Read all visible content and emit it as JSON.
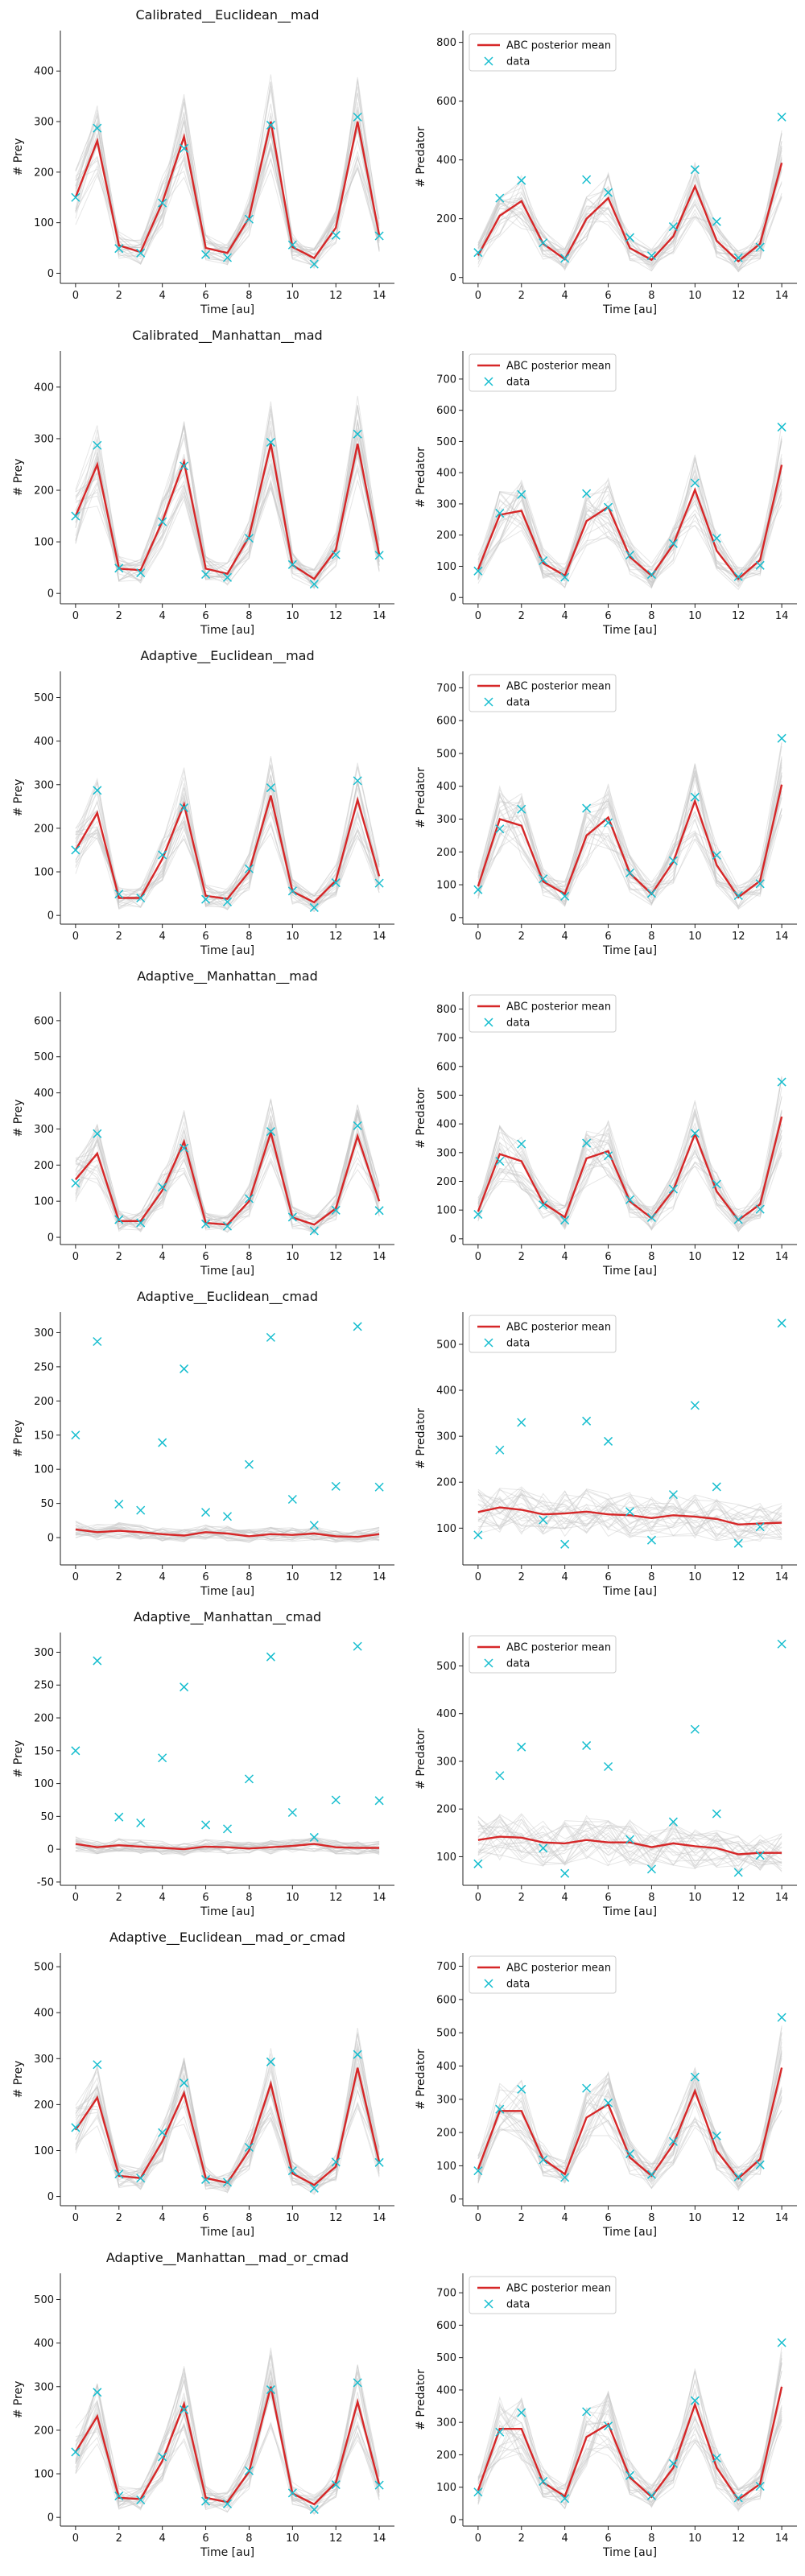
{
  "figure": {
    "background": "#ffffff"
  },
  "style": {
    "mean_color": "#d62728",
    "data_color": "#17becf",
    "sample_color": "#c8c8c8",
    "x_label": "Time [au]",
    "legend_labels": [
      "ABC posterior mean",
      "data"
    ]
  },
  "observed": {
    "x": [
      0,
      1,
      2,
      3,
      4,
      5,
      6,
      7,
      8,
      9,
      10,
      11,
      12,
      13,
      14
    ],
    "prey": [
      150,
      287,
      49,
      40,
      139,
      247,
      37,
      31,
      107,
      293,
      56,
      18,
      75,
      309,
      74
    ],
    "predator": [
      85,
      270,
      330,
      118,
      65,
      333,
      289,
      136,
      74,
      173,
      367,
      190,
      67,
      103,
      546
    ]
  },
  "chart_data": [
    {
      "type": "line",
      "title": "Calibrated__Euclidean__mad",
      "xlabel": "Time [au]",
      "ylabel": "# Prey",
      "xlim": [
        -0.7,
        14.7
      ],
      "ylim": [
        -20,
        480
      ],
      "xticks": [
        0,
        2,
        4,
        6,
        8,
        10,
        12,
        14
      ],
      "yticks": [
        0,
        100,
        200,
        300,
        400
      ],
      "series": [
        {
          "name": "ABC posterior mean",
          "values": [
            150,
            262,
            55,
            42,
            140,
            270,
            50,
            40,
            110,
            300,
            52,
            30,
            90,
            300,
            75
          ]
        },
        {
          "name": "data",
          "values": [
            150,
            287,
            49,
            40,
            139,
            247,
            37,
            31,
            107,
            293,
            56,
            18,
            75,
            309,
            74
          ]
        }
      ],
      "legend": ""
    },
    {
      "type": "line",
      "title": "",
      "xlabel": "Time [au]",
      "ylabel": "# Predator",
      "xlim": [
        -0.7,
        14.7
      ],
      "ylim": [
        -20,
        840
      ],
      "xticks": [
        0,
        2,
        4,
        6,
        8,
        10,
        12,
        14
      ],
      "yticks": [
        0,
        200,
        400,
        600,
        800
      ],
      "series": [
        {
          "name": "ABC posterior mean",
          "values": [
            75,
            210,
            260,
            115,
            62,
            200,
            270,
            100,
            60,
            140,
            310,
            125,
            55,
            115,
            390
          ]
        },
        {
          "name": "data",
          "values": [
            85,
            270,
            330,
            118,
            65,
            333,
            289,
            136,
            74,
            173,
            367,
            190,
            67,
            103,
            546
          ]
        }
      ],
      "legend": "upper left"
    },
    {
      "type": "line",
      "title": "Calibrated__Manhattan__mad",
      "xlabel": "Time [au]",
      "ylabel": "# Prey",
      "xlim": [
        -0.7,
        14.7
      ],
      "ylim": [
        -20,
        470
      ],
      "xticks": [
        0,
        2,
        4,
        6,
        8,
        10,
        12,
        14
      ],
      "yticks": [
        0,
        100,
        200,
        300,
        400
      ],
      "series": [
        {
          "name": "ABC posterior mean",
          "values": [
            150,
            250,
            48,
            45,
            140,
            255,
            48,
            38,
            110,
            290,
            55,
            28,
            85,
            290,
            75
          ]
        },
        {
          "name": "data",
          "values": [
            150,
            287,
            49,
            40,
            139,
            247,
            37,
            31,
            107,
            293,
            56,
            18,
            75,
            309,
            74
          ]
        }
      ],
      "legend": ""
    },
    {
      "type": "line",
      "title": "",
      "xlabel": "Time [au]",
      "ylabel": "# Predator",
      "xlim": [
        -0.7,
        14.7
      ],
      "ylim": [
        -20,
        790
      ],
      "xticks": [
        0,
        2,
        4,
        6,
        8,
        10,
        12,
        14
      ],
      "yticks": [
        0,
        100,
        200,
        300,
        400,
        500,
        600,
        700
      ],
      "series": [
        {
          "name": "ABC posterior mean",
          "values": [
            90,
            265,
            278,
            110,
            70,
            245,
            290,
            130,
            70,
            170,
            345,
            150,
            60,
            120,
            425
          ]
        },
        {
          "name": "data",
          "values": [
            85,
            270,
            330,
            118,
            65,
            333,
            289,
            136,
            74,
            173,
            367,
            190,
            67,
            103,
            546
          ]
        }
      ],
      "legend": "upper left"
    },
    {
      "type": "line",
      "title": "Adaptive__Euclidean__mad",
      "xlabel": "Time [au]",
      "ylabel": "# Prey",
      "xlim": [
        -0.7,
        14.7
      ],
      "ylim": [
        -20,
        560
      ],
      "xticks": [
        0,
        2,
        4,
        6,
        8,
        10,
        12,
        14
      ],
      "yticks": [
        0,
        100,
        200,
        300,
        400,
        500
      ],
      "series": [
        {
          "name": "ABC posterior mean",
          "values": [
            150,
            235,
            40,
            40,
            130,
            255,
            45,
            38,
            100,
            275,
            55,
            30,
            80,
            265,
            90
          ]
        },
        {
          "name": "data",
          "values": [
            150,
            287,
            49,
            40,
            139,
            247,
            37,
            31,
            107,
            293,
            56,
            18,
            75,
            309,
            74
          ]
        }
      ],
      "legend": ""
    },
    {
      "type": "line",
      "title": "",
      "xlabel": "Time [au]",
      "ylabel": "# Predator",
      "xlim": [
        -0.7,
        14.7
      ],
      "ylim": [
        -20,
        750
      ],
      "xticks": [
        0,
        2,
        4,
        6,
        8,
        10,
        12,
        14
      ],
      "yticks": [
        0,
        100,
        200,
        300,
        400,
        500,
        600,
        700
      ],
      "series": [
        {
          "name": "ABC posterior mean",
          "values": [
            95,
            300,
            280,
            110,
            72,
            250,
            305,
            135,
            72,
            170,
            355,
            160,
            62,
            112,
            405
          ]
        },
        {
          "name": "data",
          "values": [
            85,
            270,
            330,
            118,
            65,
            333,
            289,
            136,
            74,
            173,
            367,
            190,
            67,
            103,
            546
          ]
        }
      ],
      "legend": "upper left"
    },
    {
      "type": "line",
      "title": "Adaptive__Manhattan__mad",
      "xlabel": "Time [au]",
      "ylabel": "# Prey",
      "xlim": [
        -0.7,
        14.7
      ],
      "ylim": [
        -20,
        680
      ],
      "xticks": [
        0,
        2,
        4,
        6,
        8,
        10,
        12,
        14
      ],
      "yticks": [
        0,
        100,
        200,
        300,
        400,
        500,
        600
      ],
      "series": [
        {
          "name": "ABC posterior mean",
          "values": [
            160,
            232,
            45,
            45,
            130,
            265,
            40,
            35,
            100,
            290,
            55,
            35,
            80,
            280,
            100
          ]
        },
        {
          "name": "data",
          "values": [
            150,
            287,
            49,
            40,
            139,
            247,
            37,
            31,
            107,
            293,
            56,
            18,
            75,
            309,
            74
          ]
        }
      ],
      "legend": ""
    },
    {
      "type": "line",
      "title": "",
      "xlabel": "Time [au]",
      "ylabel": "# Predator",
      "xlim": [
        -0.7,
        14.7
      ],
      "ylim": [
        -20,
        860
      ],
      "xticks": [
        0,
        2,
        4,
        6,
        8,
        10,
        12,
        14
      ],
      "yticks": [
        0,
        100,
        200,
        300,
        400,
        500,
        600,
        700,
        800
      ],
      "series": [
        {
          "name": "ABC posterior mean",
          "values": [
            95,
            295,
            270,
            125,
            75,
            280,
            305,
            130,
            72,
            170,
            365,
            165,
            65,
            120,
            425
          ]
        },
        {
          "name": "data",
          "values": [
            85,
            270,
            330,
            118,
            65,
            333,
            289,
            136,
            74,
            173,
            367,
            190,
            67,
            103,
            546
          ]
        }
      ],
      "legend": "upper left"
    },
    {
      "type": "line",
      "title": "Adaptive__Euclidean__cmad",
      "xlabel": "Time [au]",
      "ylabel": "# Prey",
      "xlim": [
        -0.7,
        14.7
      ],
      "ylim": [
        -40,
        330
      ],
      "xticks": [
        0,
        2,
        4,
        6,
        8,
        10,
        12,
        14
      ],
      "yticks": [
        0,
        50,
        100,
        150,
        200,
        250,
        300
      ],
      "series": [
        {
          "name": "ABC posterior mean",
          "values": [
            12,
            8,
            10,
            8,
            5,
            3,
            8,
            6,
            2,
            5,
            4,
            6,
            2,
            1,
            5
          ]
        },
        {
          "name": "data",
          "values": [
            150,
            287,
            49,
            40,
            139,
            247,
            37,
            31,
            107,
            293,
            56,
            18,
            75,
            309,
            74
          ]
        }
      ],
      "legend": ""
    },
    {
      "type": "line",
      "title": "",
      "xlabel": "Time [au]",
      "ylabel": "# Predator",
      "xlim": [
        -0.7,
        14.7
      ],
      "ylim": [
        20,
        570
      ],
      "xticks": [
        0,
        2,
        4,
        6,
        8,
        10,
        12,
        14
      ],
      "yticks": [
        100,
        200,
        300,
        400,
        500
      ],
      "series": [
        {
          "name": "ABC posterior mean",
          "values": [
            135,
            145,
            140,
            130,
            132,
            136,
            130,
            128,
            122,
            128,
            125,
            120,
            108,
            110,
            112
          ]
        },
        {
          "name": "data",
          "values": [
            85,
            270,
            330,
            118,
            65,
            333,
            289,
            136,
            74,
            173,
            367,
            190,
            67,
            103,
            546
          ]
        }
      ],
      "legend": "upper left"
    },
    {
      "type": "line",
      "title": "Adaptive__Manhattan__cmad",
      "xlabel": "Time [au]",
      "ylabel": "# Prey",
      "xlim": [
        -0.7,
        14.7
      ],
      "ylim": [
        -55,
        330
      ],
      "xticks": [
        0,
        2,
        4,
        6,
        8,
        10,
        12,
        14
      ],
      "yticks": [
        -50,
        0,
        50,
        100,
        150,
        200,
        250,
        300
      ],
      "series": [
        {
          "name": "ABC posterior mean",
          "values": [
            8,
            3,
            6,
            4,
            2,
            0,
            4,
            3,
            1,
            3,
            5,
            8,
            3,
            2,
            2
          ]
        },
        {
          "name": "data",
          "values": [
            150,
            287,
            49,
            40,
            139,
            247,
            37,
            31,
            107,
            293,
            56,
            18,
            75,
            309,
            74
          ]
        }
      ],
      "legend": ""
    },
    {
      "type": "line",
      "title": "",
      "xlabel": "Time [au]",
      "ylabel": "# Predator",
      "xlim": [
        -0.7,
        14.7
      ],
      "ylim": [
        40,
        570
      ],
      "xticks": [
        0,
        2,
        4,
        6,
        8,
        10,
        12,
        14
      ],
      "yticks": [
        100,
        200,
        300,
        400,
        500
      ],
      "series": [
        {
          "name": "ABC posterior mean",
          "values": [
            135,
            142,
            140,
            130,
            128,
            135,
            130,
            130,
            120,
            128,
            122,
            118,
            105,
            108,
            108
          ]
        },
        {
          "name": "data",
          "values": [
            85,
            270,
            330,
            118,
            65,
            333,
            289,
            136,
            74,
            173,
            367,
            190,
            67,
            103,
            546
          ]
        }
      ],
      "legend": "upper left"
    },
    {
      "type": "line",
      "title": "Adaptive__Euclidean__mad_or_cmad",
      "xlabel": "Time [au]",
      "ylabel": "# Prey",
      "xlim": [
        -0.7,
        14.7
      ],
      "ylim": [
        -20,
        530
      ],
      "xticks": [
        0,
        2,
        4,
        6,
        8,
        10,
        12,
        14
      ],
      "yticks": [
        0,
        100,
        200,
        300,
        400,
        500
      ],
      "series": [
        {
          "name": "ABC posterior mean",
          "values": [
            145,
            215,
            45,
            40,
            120,
            225,
            40,
            30,
            100,
            245,
            50,
            25,
            65,
            280,
            75
          ]
        },
        {
          "name": "data",
          "values": [
            150,
            287,
            49,
            40,
            139,
            247,
            37,
            31,
            107,
            293,
            56,
            18,
            75,
            309,
            74
          ]
        }
      ],
      "legend": ""
    },
    {
      "type": "line",
      "title": "",
      "xlabel": "Time [au]",
      "ylabel": "# Predator",
      "xlim": [
        -0.7,
        14.7
      ],
      "ylim": [
        -20,
        740
      ],
      "xticks": [
        0,
        2,
        4,
        6,
        8,
        10,
        12,
        14
      ],
      "yticks": [
        0,
        100,
        200,
        300,
        400,
        500,
        600,
        700
      ],
      "series": [
        {
          "name": "ABC posterior mean",
          "values": [
            90,
            265,
            265,
            120,
            75,
            245,
            285,
            125,
            70,
            165,
            325,
            145,
            62,
            120,
            395
          ]
        },
        {
          "name": "data",
          "values": [
            85,
            270,
            330,
            118,
            65,
            333,
            289,
            136,
            74,
            173,
            367,
            190,
            67,
            103,
            546
          ]
        }
      ],
      "legend": "upper left"
    },
    {
      "type": "line",
      "title": "Adaptive__Manhattan__mad_or_cmad",
      "xlabel": "Time [au]",
      "ylabel": "# Prey",
      "xlim": [
        -0.7,
        14.7
      ],
      "ylim": [
        -20,
        560
      ],
      "xticks": [
        0,
        2,
        4,
        6,
        8,
        10,
        12,
        14
      ],
      "yticks": [
        0,
        100,
        200,
        300,
        400,
        500
      ],
      "series": [
        {
          "name": "ABC posterior mean",
          "values": [
            150,
            232,
            45,
            42,
            130,
            260,
            45,
            35,
            105,
            300,
            55,
            30,
            80,
            265,
            75
          ]
        },
        {
          "name": "data",
          "values": [
            150,
            287,
            49,
            40,
            139,
            247,
            37,
            31,
            107,
            293,
            56,
            18,
            75,
            309,
            74
          ]
        }
      ],
      "legend": ""
    },
    {
      "type": "line",
      "title": "",
      "xlabel": "Time [au]",
      "ylabel": "# Predator",
      "xlim": [
        -0.7,
        14.7
      ],
      "ylim": [
        -20,
        760
      ],
      "xticks": [
        0,
        2,
        4,
        6,
        8,
        10,
        12,
        14
      ],
      "yticks": [
        0,
        100,
        200,
        300,
        400,
        500,
        600,
        700
      ],
      "series": [
        {
          "name": "ABC posterior mean",
          "values": [
            90,
            280,
            280,
            115,
            72,
            255,
            295,
            130,
            70,
            160,
            355,
            160,
            62,
            110,
            410
          ]
        },
        {
          "name": "data",
          "values": [
            85,
            270,
            330,
            118,
            65,
            333,
            289,
            136,
            74,
            173,
            367,
            190,
            67,
            103,
            546
          ]
        }
      ],
      "legend": "upper left"
    }
  ]
}
